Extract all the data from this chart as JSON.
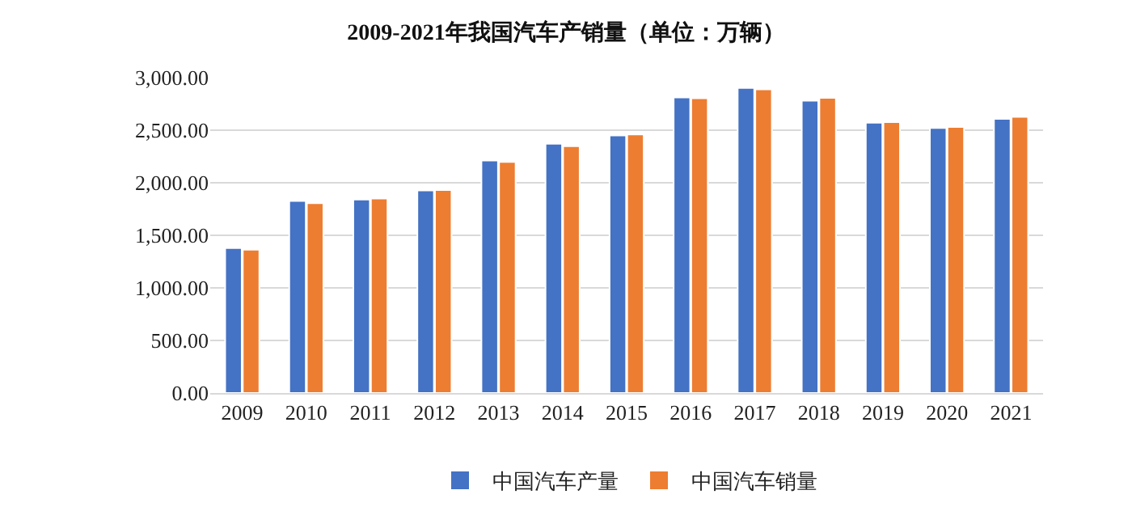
{
  "chart_data": {
    "type": "bar",
    "title": "2009-2021年我国汽车产销量（单位：万辆）",
    "categories": [
      "2009",
      "2010",
      "2011",
      "2012",
      "2013",
      "2014",
      "2015",
      "2016",
      "2017",
      "2018",
      "2019",
      "2020",
      "2021"
    ],
    "series": [
      {
        "name": "中国汽车产量",
        "color": "#4472c4",
        "values": [
          1379,
          1826,
          1841,
          1927,
          2212,
          2372,
          2450,
          2812,
          2902,
          2781,
          2572,
          2522,
          2608
        ]
      },
      {
        "name": "中国汽车销量",
        "color": "#ed7d31",
        "values": [
          1364,
          1806,
          1851,
          1931,
          2198,
          2349,
          2460,
          2803,
          2888,
          2808,
          2577,
          2531,
          2627
        ]
      }
    ],
    "ylim": [
      0,
      3000
    ],
    "yticks": [
      {
        "value": 0,
        "label": "0.00"
      },
      {
        "value": 500,
        "label": "500.00"
      },
      {
        "value": 1000,
        "label": "1,000.00"
      },
      {
        "value": 1500,
        "label": "1,500.00"
      },
      {
        "value": 2000,
        "label": "2,000.00"
      },
      {
        "value": 2500,
        "label": "2,500.00"
      },
      {
        "value": 3000,
        "label": "3,000.00"
      }
    ],
    "grid": "y",
    "legend": "bottom"
  }
}
